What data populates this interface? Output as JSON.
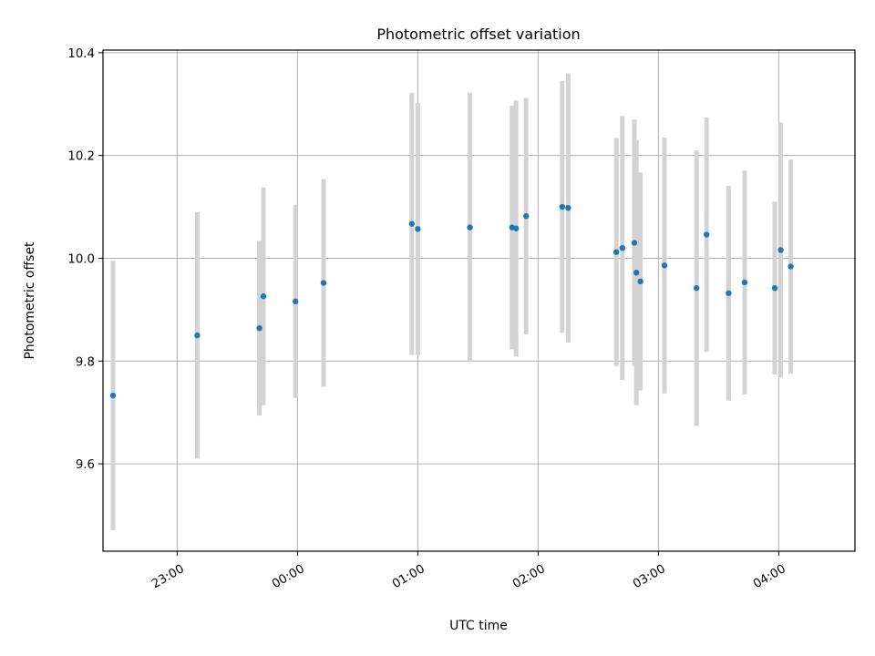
{
  "chart_data": {
    "type": "scatter",
    "title": "Photometric offset variation",
    "xlabel": "UTC time",
    "ylabel": "Photometric offset",
    "x_axis": "time",
    "xlim": [
      "22:23",
      "04:38"
    ],
    "ylim": [
      9.43,
      10.405
    ],
    "x_ticks": [
      "23:00",
      "00:00",
      "01:00",
      "02:00",
      "03:00",
      "04:00"
    ],
    "y_ticks": [
      9.6,
      9.8,
      10.0,
      10.2,
      10.4
    ],
    "y_tick_labels": [
      "9.6",
      "9.8",
      "10.0",
      "10.2",
      "10.4"
    ],
    "grid": true,
    "colors": {
      "marker": "#1f77b4",
      "errorbar": "#d3d3d3",
      "grid": "#b0b0b0"
    },
    "points": [
      {
        "t": "22:28",
        "y": 9.733,
        "yerr": 0.262
      },
      {
        "t": "23:10",
        "y": 9.85,
        "yerr": 0.24
      },
      {
        "t": "23:41",
        "y": 9.864,
        "yerr": 0.17
      },
      {
        "t": "23:43",
        "y": 9.926,
        "yerr": 0.212
      },
      {
        "t": "23:59",
        "y": 9.916,
        "yerr": 0.188
      },
      {
        "t": "00:13",
        "y": 9.952,
        "yerr": 0.202
      },
      {
        "t": "00:57",
        "y": 10.067,
        "yerr": 0.255
      },
      {
        "t": "01:00",
        "y": 10.057,
        "yerr": 0.245
      },
      {
        "t": "01:26",
        "y": 10.06,
        "yerr": 0.262
      },
      {
        "t": "01:47",
        "y": 10.06,
        "yerr": 0.237
      },
      {
        "t": "01:49",
        "y": 10.058,
        "yerr": 0.249
      },
      {
        "t": "01:54",
        "y": 10.082,
        "yerr": 0.23
      },
      {
        "t": "02:12",
        "y": 10.1,
        "yerr": 0.245
      },
      {
        "t": "02:15",
        "y": 10.098,
        "yerr": 0.262
      },
      {
        "t": "02:39",
        "y": 10.012,
        "yerr": 0.222
      },
      {
        "t": "02:42",
        "y": 10.02,
        "yerr": 0.257
      },
      {
        "t": "02:48",
        "y": 10.03,
        "yerr": 0.24
      },
      {
        "t": "02:49",
        "y": 9.972,
        "yerr": 0.258
      },
      {
        "t": "02:51",
        "y": 9.955,
        "yerr": 0.212
      },
      {
        "t": "03:03",
        "y": 9.986,
        "yerr": 0.249
      },
      {
        "t": "03:19",
        "y": 9.942,
        "yerr": 0.268
      },
      {
        "t": "03:24",
        "y": 10.046,
        "yerr": 0.228
      },
      {
        "t": "03:35",
        "y": 9.932,
        "yerr": 0.209
      },
      {
        "t": "03:43",
        "y": 9.953,
        "yerr": 0.218
      },
      {
        "t": "03:58",
        "y": 9.942,
        "yerr": 0.168
      },
      {
        "t": "04:01",
        "y": 10.016,
        "yerr": 0.248
      },
      {
        "t": "04:06",
        "y": 9.984,
        "yerr": 0.208
      }
    ]
  }
}
